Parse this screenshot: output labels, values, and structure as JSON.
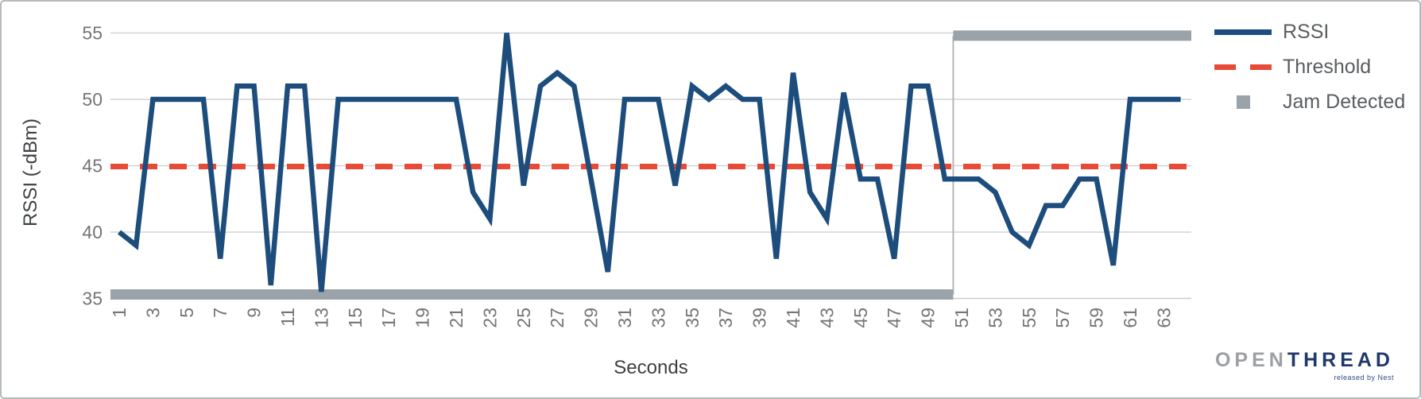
{
  "chart_data": {
    "type": "line",
    "title": "",
    "xlabel": "Seconds",
    "ylabel": "RSSI (-dBm)",
    "grid": "horizontal",
    "legend_position": "right",
    "ylim": [
      35,
      55
    ],
    "y_ticks": [
      55,
      50,
      45,
      40,
      35
    ],
    "x_first_second": 1,
    "x_tick_labels": [
      "1",
      "3",
      "5",
      "7",
      "9",
      "11",
      "13",
      "15",
      "17",
      "19",
      "21",
      "23",
      "25",
      "27",
      "29",
      "31",
      "33",
      "35",
      "37",
      "39",
      "41",
      "43",
      "45",
      "47",
      "49",
      "51",
      "53",
      "55",
      "57",
      "59",
      "61",
      "63"
    ],
    "series": [
      {
        "name": "RSSI",
        "style": "solid",
        "color": "#1d4d7c",
        "x_start": 1,
        "values": [
          40,
          39,
          50,
          50,
          50,
          50,
          38,
          51,
          51,
          36,
          51,
          51,
          35.5,
          50,
          50,
          50,
          50,
          50,
          50,
          50,
          50,
          43,
          41,
          55,
          43.5,
          51,
          52,
          51,
          44,
          37,
          50,
          50,
          50,
          43.5,
          51,
          50,
          51,
          50,
          50,
          38,
          52,
          43,
          41,
          50.5,
          44,
          44,
          38,
          51,
          51,
          44,
          44,
          44,
          43,
          40,
          39,
          42,
          42,
          44,
          44,
          37.5,
          50,
          50,
          50,
          50
        ]
      },
      {
        "name": "Threshold",
        "style": "dashed",
        "color": "#e74b37",
        "value": 45
      },
      {
        "name": "Jam Detected",
        "style": "band",
        "color": "#9aa3aa",
        "low_level": 35.3,
        "high_level": 54.8,
        "low_from_second": 1,
        "transition_between_seconds": [
          50,
          51
        ],
        "high_until_second": 64
      }
    ]
  },
  "legend": {
    "items": [
      {
        "label": "RSSI",
        "swatch": "line"
      },
      {
        "label": "Threshold",
        "swatch": "dashes"
      },
      {
        "label": "Jam Detected",
        "swatch": "square"
      }
    ]
  },
  "branding": {
    "wordmark_gray": "OPEN",
    "wordmark_navy": "THREAD",
    "tagline": "released by Nest"
  },
  "colors": {
    "rssi": "#1d4d7c",
    "threshold": "#e74b37",
    "jam": "#9aa3aa",
    "gridline": "#d2d4d6",
    "axis_line": "#c9cccf",
    "tick_label": "#757575",
    "axis_title": "#3d4043",
    "legend_text": "#5a5e61",
    "jam_connector": "#b4b8bb",
    "logo_gray": "#9d9fa2",
    "logo_navy": "#20386b",
    "border": "#b6babd",
    "background": "#ffffff"
  }
}
